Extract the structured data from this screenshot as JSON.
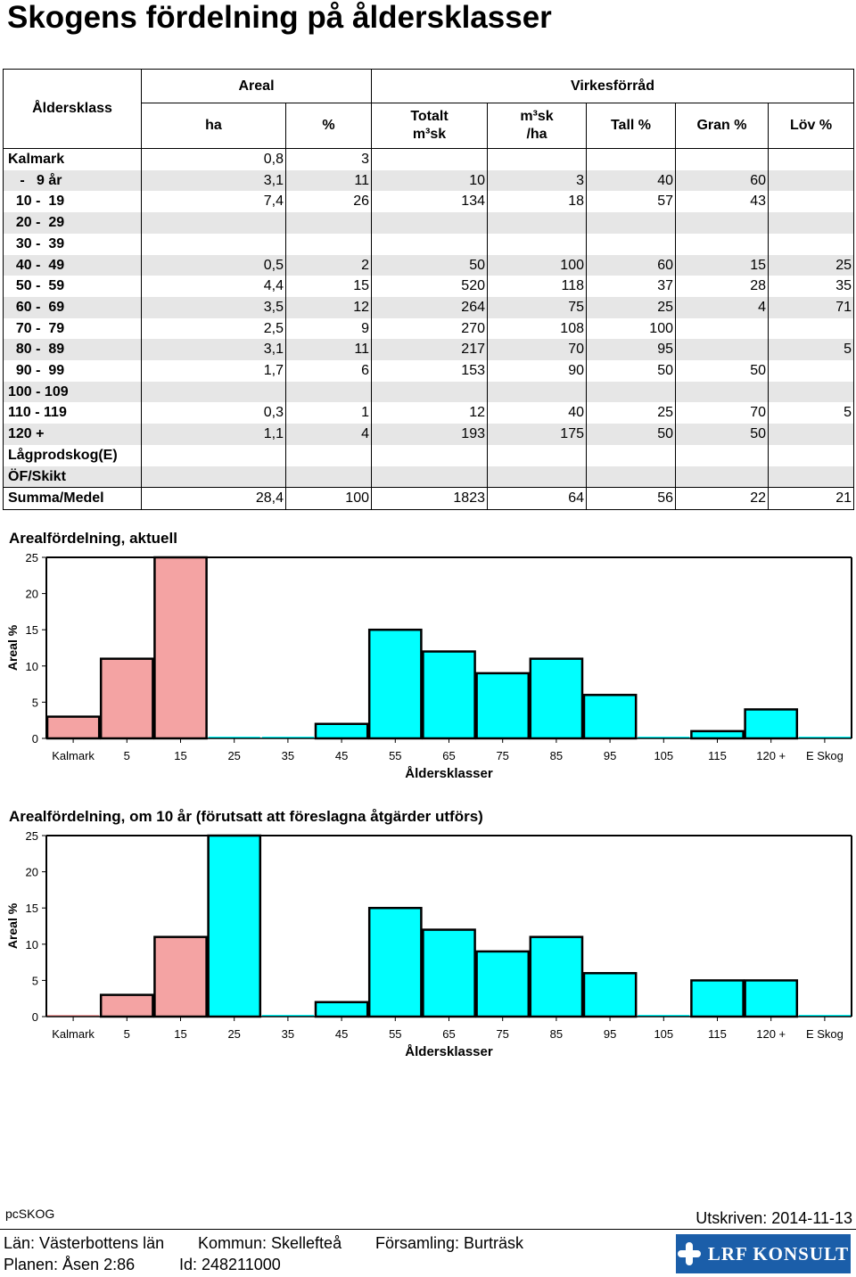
{
  "title": "Skogens fördelning på åldersklasser",
  "table": {
    "headers": {
      "age_class": "Åldersklass",
      "areal": "Areal",
      "virkesforrad": "Virkesförråd",
      "ha": "ha",
      "pct": "%",
      "totalt_line1": "Totalt",
      "totalt_line2": "m³sk",
      "m3sk_ha_line1": "m³sk",
      "m3sk_ha_line2": "/ha",
      "tall": "Tall %",
      "gran": "Gran %",
      "lov": "Löv %"
    },
    "rows": [
      {
        "label": "Kalmark",
        "ha": "0,8",
        "pct": "3",
        "totalt": "",
        "per_ha": "",
        "tall": "",
        "gran": "",
        "lov": ""
      },
      {
        "label": "   -   9 år",
        "ha": "3,1",
        "pct": "11",
        "totalt": "10",
        "per_ha": "3",
        "tall": "40",
        "gran": "60",
        "lov": ""
      },
      {
        "label": "  10 -  19",
        "ha": "7,4",
        "pct": "26",
        "totalt": "134",
        "per_ha": "18",
        "tall": "57",
        "gran": "43",
        "lov": ""
      },
      {
        "label": "  20 -  29",
        "ha": "",
        "pct": "",
        "totalt": "",
        "per_ha": "",
        "tall": "",
        "gran": "",
        "lov": ""
      },
      {
        "label": "  30 -  39",
        "ha": "",
        "pct": "",
        "totalt": "",
        "per_ha": "",
        "tall": "",
        "gran": "",
        "lov": ""
      },
      {
        "label": "  40 -  49",
        "ha": "0,5",
        "pct": "2",
        "totalt": "50",
        "per_ha": "100",
        "tall": "60",
        "gran": "15",
        "lov": "25"
      },
      {
        "label": "  50 -  59",
        "ha": "4,4",
        "pct": "15",
        "totalt": "520",
        "per_ha": "118",
        "tall": "37",
        "gran": "28",
        "lov": "35"
      },
      {
        "label": "  60 -  69",
        "ha": "3,5",
        "pct": "12",
        "totalt": "264",
        "per_ha": "75",
        "tall": "25",
        "gran": "4",
        "lov": "71"
      },
      {
        "label": "  70 -  79",
        "ha": "2,5",
        "pct": "9",
        "totalt": "270",
        "per_ha": "108",
        "tall": "100",
        "gran": "",
        "lov": ""
      },
      {
        "label": "  80 -  89",
        "ha": "3,1",
        "pct": "11",
        "totalt": "217",
        "per_ha": "70",
        "tall": "95",
        "gran": "",
        "lov": "5"
      },
      {
        "label": "  90 -  99",
        "ha": "1,7",
        "pct": "6",
        "totalt": "153",
        "per_ha": "90",
        "tall": "50",
        "gran": "50",
        "lov": ""
      },
      {
        "label": "100 - 109",
        "ha": "",
        "pct": "",
        "totalt": "",
        "per_ha": "",
        "tall": "",
        "gran": "",
        "lov": ""
      },
      {
        "label": "110 - 119",
        "ha": "0,3",
        "pct": "1",
        "totalt": "12",
        "per_ha": "40",
        "tall": "25",
        "gran": "70",
        "lov": "5"
      },
      {
        "label": "120 +",
        "ha": "1,1",
        "pct": "4",
        "totalt": "193",
        "per_ha": "175",
        "tall": "50",
        "gran": "50",
        "lov": ""
      },
      {
        "label": "Lågprodskog(E)",
        "ha": "",
        "pct": "",
        "totalt": "",
        "per_ha": "",
        "tall": "",
        "gran": "",
        "lov": ""
      },
      {
        "label": "ÖF/Skikt",
        "ha": "",
        "pct": "",
        "totalt": "",
        "per_ha": "",
        "tall": "",
        "gran": "",
        "lov": ""
      }
    ],
    "sum_row": {
      "label": "Summa/Medel",
      "ha": "28,4",
      "pct": "100",
      "totalt": "1823",
      "per_ha": "64",
      "tall": "56",
      "gran": "22",
      "lov": "21"
    }
  },
  "chart_data": [
    {
      "type": "bar",
      "title": "Arealfördelning, aktuell",
      "xlabel": "Åldersklasser",
      "ylabel": "Areal %",
      "ylim": [
        0,
        25
      ],
      "yticks": [
        0,
        5,
        10,
        15,
        20,
        25
      ],
      "categories": [
        "Kalmark",
        "5",
        "15",
        "25",
        "35",
        "45",
        "55",
        "65",
        "75",
        "85",
        "95",
        "105",
        "115",
        "120 +",
        "E Skog"
      ],
      "values": [
        3,
        11,
        26,
        0,
        0,
        2,
        15,
        12,
        9,
        11,
        6,
        0,
        1,
        4,
        0
      ],
      "colors": [
        "#f4a3a3",
        "#f4a3a3",
        "#f4a3a3",
        "#00ffff",
        "#00ffff",
        "#00ffff",
        "#00ffff",
        "#00ffff",
        "#00ffff",
        "#00ffff",
        "#00ffff",
        "#00ffff",
        "#00ffff",
        "#00ffff",
        "#00ffff"
      ]
    },
    {
      "type": "bar",
      "title": "Arealfördelning, om 10 år (förutsatt att föreslagna åtgärder utförs)",
      "xlabel": "Åldersklasser",
      "ylabel": "Areal %",
      "ylim": [
        0,
        25
      ],
      "yticks": [
        0,
        5,
        10,
        15,
        20,
        25
      ],
      "categories": [
        "Kalmark",
        "5",
        "15",
        "25",
        "35",
        "45",
        "55",
        "65",
        "75",
        "85",
        "95",
        "105",
        "115",
        "120 +",
        "E Skog"
      ],
      "values": [
        0,
        3,
        11,
        26,
        0,
        2,
        15,
        12,
        9,
        11,
        6,
        0,
        5,
        5,
        0
      ],
      "colors": [
        "#f4a3a3",
        "#f4a3a3",
        "#f4a3a3",
        "#00ffff",
        "#00ffff",
        "#00ffff",
        "#00ffff",
        "#00ffff",
        "#00ffff",
        "#00ffff",
        "#00ffff",
        "#00ffff",
        "#00ffff",
        "#00ffff",
        "#00ffff"
      ]
    }
  ],
  "footer": {
    "app": "pcSKOG",
    "printed": "Utskriven: 2014-11-13",
    "lan": "Län: Västerbottens län",
    "kommun": "Kommun: Skellefteå",
    "forsamling": "Församling: Burträsk",
    "planen": "Planen: Åsen 2:86",
    "id": "Id: 248211000",
    "logo_text": "LRF KONSULT"
  }
}
